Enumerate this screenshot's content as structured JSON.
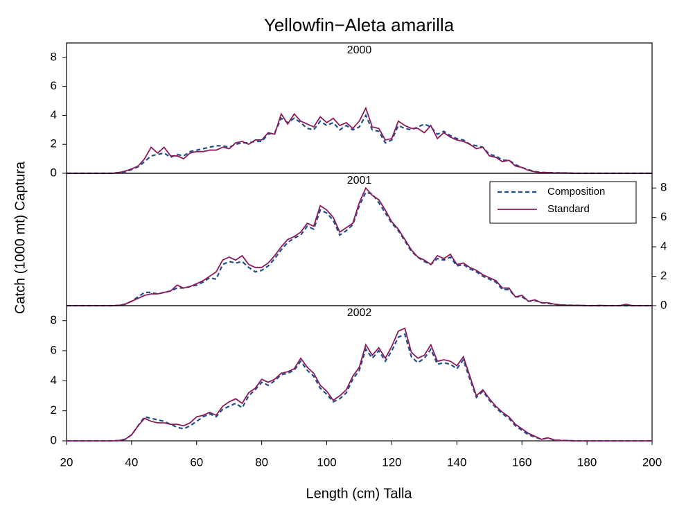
{
  "figure": {
    "title": "Yellowfin−Aleta amarilla",
    "x_label": "Length (cm) Talla",
    "y_label": "Catch (1000 mt) Captura"
  },
  "chart_data": [
    {
      "type": "line",
      "subtitle": "2000",
      "x": [
        20,
        22,
        24,
        26,
        28,
        30,
        32,
        34,
        36,
        38,
        40,
        42,
        44,
        46,
        48,
        50,
        52,
        54,
        56,
        58,
        60,
        62,
        64,
        66,
        68,
        70,
        72,
        74,
        76,
        78,
        80,
        82,
        84,
        86,
        88,
        90,
        92,
        94,
        96,
        98,
        100,
        102,
        104,
        106,
        108,
        110,
        112,
        114,
        116,
        118,
        120,
        122,
        124,
        126,
        128,
        130,
        132,
        134,
        136,
        138,
        140,
        142,
        144,
        146,
        148,
        150,
        152,
        154,
        156,
        158,
        160,
        162,
        164,
        166,
        168,
        170,
        172,
        174,
        176,
        178,
        180,
        182,
        184,
        186,
        188,
        190,
        192,
        194,
        196,
        198,
        200
      ],
      "xlim": [
        20,
        200
      ],
      "ylim": [
        0,
        9
      ],
      "yticks": [
        0,
        2,
        4,
        6,
        8
      ],
      "y_axis_side": "left",
      "series": [
        {
          "color": "#1f4e8c",
          "dash": true,
          "values": [
            0,
            0,
            0,
            0,
            0,
            0,
            0,
            0,
            0.05,
            0.1,
            0.25,
            0.45,
            0.8,
            1.2,
            1.3,
            1.4,
            1.1,
            1.3,
            1.2,
            1.5,
            1.6,
            1.7,
            1.8,
            1.9,
            1.9,
            1.8,
            2.0,
            2.1,
            2.1,
            2.2,
            2.2,
            2.7,
            2.8,
            3.8,
            3.5,
            3.8,
            3.5,
            3.1,
            3.0,
            3.6,
            3.3,
            3.5,
            3.0,
            3.3,
            3.0,
            3.2,
            4.0,
            3.0,
            2.9,
            2.1,
            2.3,
            3.3,
            3.1,
            3.0,
            3.2,
            3.4,
            3.2,
            2.7,
            2.9,
            2.6,
            2.4,
            2.3,
            2.0,
            1.9,
            1.8,
            1.3,
            1.2,
            0.9,
            0.9,
            0.6,
            0.4,
            0.25,
            0.12,
            0.06,
            0.05,
            0.03,
            0.03,
            0.02,
            0,
            0,
            0,
            0,
            0,
            0,
            0,
            0,
            0,
            0,
            0,
            0,
            0
          ]
        },
        {
          "color": "#8b1a5a",
          "dash": false,
          "values": [
            0,
            0,
            0,
            0,
            0,
            0,
            0,
            0,
            0.05,
            0.15,
            0.3,
            0.5,
            1.0,
            1.8,
            1.4,
            1.8,
            1.2,
            1.2,
            1.0,
            1.4,
            1.5,
            1.5,
            1.6,
            1.6,
            1.8,
            1.7,
            2.1,
            2.2,
            2.0,
            2.3,
            2.3,
            2.8,
            2.7,
            4.1,
            3.4,
            4.1,
            3.6,
            3.4,
            3.2,
            3.9,
            3.5,
            3.8,
            3.3,
            3.5,
            3.1,
            3.6,
            4.5,
            3.2,
            3.1,
            2.3,
            2.4,
            3.6,
            3.3,
            3.1,
            3.1,
            2.8,
            3.3,
            2.4,
            2.8,
            2.5,
            2.3,
            2.2,
            2.0,
            1.7,
            1.8,
            1.2,
            1.1,
            0.8,
            0.9,
            0.5,
            0.4,
            0.2,
            0.1,
            0.05,
            0.05,
            0.02,
            0.03,
            0.02,
            0,
            0,
            0,
            0,
            0,
            0,
            0,
            0,
            0,
            0,
            0,
            0,
            0
          ]
        }
      ]
    },
    {
      "type": "line",
      "subtitle": "2001",
      "x": [
        20,
        22,
        24,
        26,
        28,
        30,
        32,
        34,
        36,
        38,
        40,
        42,
        44,
        46,
        48,
        50,
        52,
        54,
        56,
        58,
        60,
        62,
        64,
        66,
        68,
        70,
        72,
        74,
        76,
        78,
        80,
        82,
        84,
        86,
        88,
        90,
        92,
        94,
        96,
        98,
        100,
        102,
        104,
        106,
        108,
        110,
        112,
        114,
        116,
        118,
        120,
        122,
        124,
        126,
        128,
        130,
        132,
        134,
        136,
        138,
        140,
        142,
        144,
        146,
        148,
        150,
        152,
        154,
        156,
        158,
        160,
        162,
        164,
        166,
        168,
        170,
        172,
        174,
        176,
        178,
        180,
        182,
        184,
        186,
        188,
        190,
        192,
        194,
        196,
        198,
        200
      ],
      "xlim": [
        20,
        200
      ],
      "ylim": [
        0,
        9
      ],
      "yticks": [
        0,
        2,
        4,
        6,
        8
      ],
      "y_axis_side": "right",
      "legend": "upper right",
      "series": [
        {
          "name": "Composition",
          "color": "#1f4e8c",
          "dash": true,
          "values": [
            0,
            0,
            0,
            0,
            0,
            0,
            0,
            0,
            0.02,
            0.1,
            0.3,
            0.6,
            0.9,
            0.9,
            0.8,
            0.9,
            1.0,
            1.2,
            1.2,
            1.3,
            1.4,
            1.6,
            1.9,
            1.8,
            2.8,
            3.0,
            2.9,
            3.0,
            2.6,
            2.3,
            2.4,
            2.7,
            3.2,
            3.8,
            4.3,
            4.6,
            4.8,
            5.4,
            5.2,
            6.5,
            6.3,
            5.8,
            4.8,
            5.1,
            5.5,
            6.8,
            7.7,
            7.6,
            7.0,
            6.3,
            5.6,
            5.1,
            4.4,
            3.7,
            3.3,
            3.0,
            2.8,
            3.2,
            3.1,
            3.3,
            2.7,
            2.8,
            2.5,
            2.3,
            2.0,
            1.8,
            1.6,
            1.1,
            1.1,
            0.6,
            0.6,
            0.3,
            0.35,
            0.2,
            0.15,
            0.1,
            0.05,
            0.03,
            0.02,
            0.02,
            0,
            0,
            0,
            0,
            0,
            0,
            0,
            0,
            0,
            0,
            0
          ]
        },
        {
          "name": "Standard",
          "color": "#8b1a5a",
          "dash": false,
          "values": [
            0,
            0,
            0,
            0,
            0,
            0,
            0,
            0,
            0.02,
            0.1,
            0.3,
            0.5,
            0.7,
            0.8,
            0.8,
            0.9,
            1.0,
            1.4,
            1.2,
            1.3,
            1.5,
            1.7,
            2.0,
            2.3,
            3.1,
            3.3,
            3.1,
            3.4,
            2.8,
            2.6,
            2.6,
            2.9,
            3.4,
            4.0,
            4.5,
            4.7,
            5.0,
            5.6,
            5.4,
            6.8,
            6.5,
            6.0,
            5.0,
            5.3,
            5.6,
            7.0,
            8.0,
            7.5,
            7.2,
            6.5,
            5.7,
            5.2,
            4.5,
            3.8,
            3.3,
            3.1,
            2.8,
            3.4,
            3.2,
            3.5,
            2.8,
            2.9,
            2.6,
            2.4,
            2.1,
            1.9,
            1.7,
            1.2,
            1.2,
            0.6,
            0.7,
            0.3,
            0.4,
            0.2,
            0.2,
            0.1,
            0.05,
            0.03,
            0.02,
            0.02,
            0,
            0,
            0.02,
            0,
            0,
            0,
            0.1,
            0,
            0,
            0,
            0
          ]
        }
      ]
    },
    {
      "type": "line",
      "subtitle": "2002",
      "x": [
        20,
        22,
        24,
        26,
        28,
        30,
        32,
        34,
        36,
        38,
        40,
        42,
        44,
        46,
        48,
        50,
        52,
        54,
        56,
        58,
        60,
        62,
        64,
        66,
        68,
        70,
        72,
        74,
        76,
        78,
        80,
        82,
        84,
        86,
        88,
        90,
        92,
        94,
        96,
        98,
        100,
        102,
        104,
        106,
        108,
        110,
        112,
        114,
        116,
        118,
        120,
        122,
        124,
        126,
        128,
        130,
        132,
        134,
        136,
        138,
        140,
        142,
        144,
        146,
        148,
        150,
        152,
        154,
        156,
        158,
        160,
        162,
        164,
        166,
        168,
        170,
        172,
        174,
        176,
        178,
        180,
        182,
        184,
        186,
        188,
        190,
        192,
        194,
        196,
        198,
        200
      ],
      "xlim": [
        20,
        200
      ],
      "xticks": [
        20,
        40,
        60,
        80,
        100,
        120,
        140,
        160,
        180,
        200
      ],
      "ylim": [
        0,
        9
      ],
      "yticks": [
        0,
        2,
        4,
        6,
        8
      ],
      "y_axis_side": "left",
      "series": [
        {
          "color": "#1f4e8c",
          "dash": true,
          "values": [
            0,
            0,
            0,
            0,
            0,
            0,
            0,
            0,
            0.02,
            0.1,
            0.4,
            1.0,
            1.6,
            1.5,
            1.4,
            1.3,
            1.1,
            0.9,
            0.8,
            1.0,
            1.3,
            1.6,
            1.8,
            1.6,
            2.1,
            2.3,
            2.5,
            2.2,
            3.0,
            3.4,
            3.9,
            3.7,
            4.0,
            4.4,
            4.5,
            4.7,
            5.3,
            4.7,
            4.3,
            3.5,
            3.1,
            2.6,
            2.8,
            3.2,
            4.1,
            4.7,
            6.1,
            5.5,
            6.0,
            5.3,
            6.0,
            6.9,
            7.1,
            5.6,
            5.2,
            5.5,
            6.1,
            5.1,
            5.2,
            5.1,
            4.8,
            5.4,
            4.1,
            2.9,
            3.3,
            2.7,
            2.2,
            1.8,
            1.5,
            1.0,
            0.7,
            0.4,
            0.25,
            0.1,
            0.2,
            0.05,
            0.03,
            0.02,
            0,
            0,
            0,
            0,
            0,
            0,
            0,
            0,
            0,
            0,
            0,
            0,
            0
          ]
        },
        {
          "color": "#8b1a5a",
          "dash": false,
          "values": [
            0,
            0,
            0,
            0,
            0,
            0,
            0,
            0,
            0.02,
            0.1,
            0.4,
            1.0,
            1.5,
            1.3,
            1.2,
            1.2,
            1.1,
            1.1,
            1.0,
            1.2,
            1.6,
            1.7,
            1.9,
            1.7,
            2.3,
            2.6,
            2.8,
            2.5,
            3.2,
            3.5,
            4.1,
            3.9,
            4.1,
            4.5,
            4.6,
            4.8,
            5.5,
            4.9,
            4.5,
            3.7,
            3.3,
            2.7,
            3.0,
            3.4,
            4.3,
            4.9,
            6.4,
            5.7,
            6.2,
            5.5,
            6.3,
            7.3,
            7.5,
            5.9,
            5.5,
            5.7,
            6.4,
            5.3,
            5.4,
            5.3,
            5.0,
            5.6,
            4.3,
            3.0,
            3.4,
            2.8,
            2.3,
            1.9,
            1.6,
            1.1,
            0.8,
            0.5,
            0.3,
            0.1,
            0.2,
            0.05,
            0.03,
            0.02,
            0,
            0,
            0,
            0,
            0,
            0,
            0,
            0,
            0,
            0,
            0,
            0,
            0
          ]
        }
      ]
    }
  ]
}
